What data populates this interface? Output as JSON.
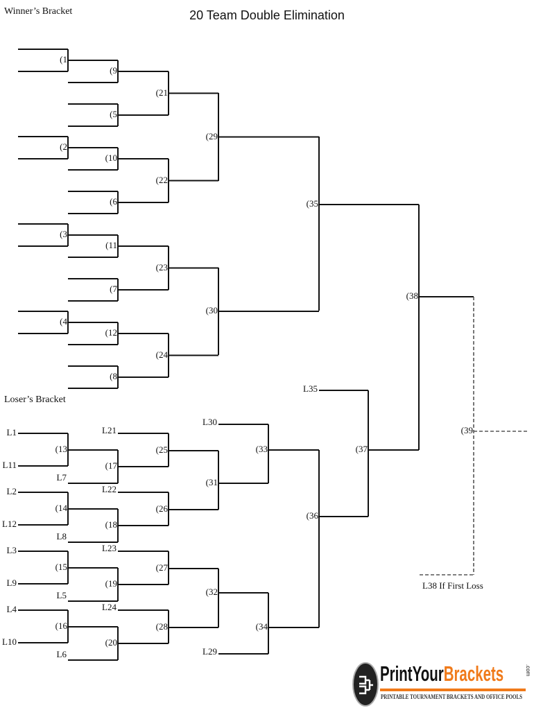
{
  "title": "20 Team Double Elimination",
  "winners_heading": "Winner’s Bracket",
  "losers_heading": "Loser’s Bracket",
  "if_first_loss": "L38 If First Loss",
  "games": {
    "g1": "(1",
    "g2": "(2",
    "g3": "(3",
    "g4": "(4",
    "g5": "(5",
    "g6": "(6",
    "g7": "(7",
    "g8": "(8",
    "g9": "(9",
    "g10": "(10",
    "g11": "(11",
    "g12": "(12",
    "g13": "(13",
    "g14": "(14",
    "g15": "(15",
    "g16": "(16",
    "g17": "(17",
    "g18": "(18",
    "g19": "(19",
    "g20": "(20",
    "g21": "(21",
    "g22": "(22",
    "g23": "(23",
    "g24": "(24",
    "g25": "(25",
    "g26": "(26",
    "g27": "(27",
    "g28": "(28",
    "g29": "(29",
    "g30": "(30",
    "g31": "(31",
    "g32": "(32",
    "g33": "(33",
    "g34": "(34",
    "g35": "(35",
    "g36": "(36",
    "g37": "(37",
    "g38": "(38",
    "g39": "(39"
  },
  "seeds": {
    "L1": "L1",
    "L2": "L2",
    "L3": "L3",
    "L4": "L4",
    "L5": "L5",
    "L6": "L6",
    "L7": "L7",
    "L8": "L8",
    "L9": "L9",
    "L10": "L10",
    "L11": "L11",
    "L12": "L12",
    "L21": "L21",
    "L22": "L22",
    "L23": "L23",
    "L24": "L24",
    "L29": "L29",
    "L30": "L30",
    "L35": "L35"
  },
  "logo": {
    "name_part1": "PrintYour",
    "name_part2": "Brackets",
    "domain": ".com",
    "tagline": "PRINTABLE TOURNAMENT BRACKETS AND OFFICE POOLS",
    "accent_color": "#f07a1a"
  }
}
